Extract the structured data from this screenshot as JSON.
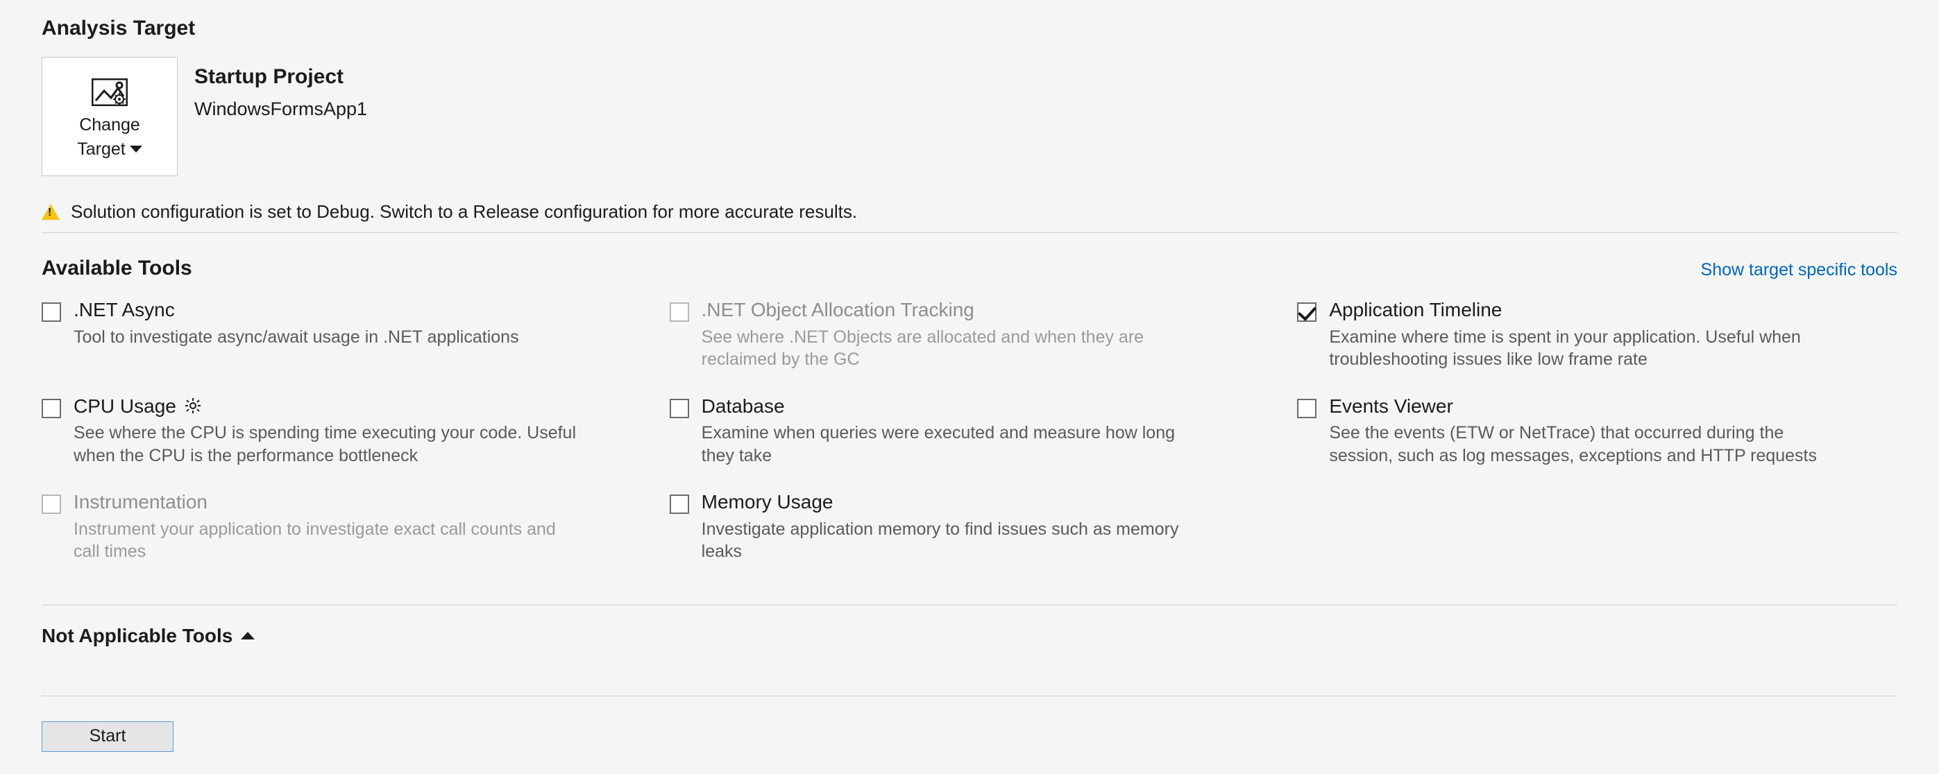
{
  "section_analysis_target": "Analysis Target",
  "change_target": {
    "line1": "Change",
    "line2": "Target"
  },
  "startup_project": {
    "label": "Startup Project",
    "name": "WindowsFormsApp1"
  },
  "warning_text": "Solution configuration is set to Debug. Switch to a Release configuration for more accurate results.",
  "section_available_tools": "Available Tools",
  "show_target_specific_link": "Show target specific tools",
  "tools": [
    {
      "title": ".NET Async",
      "desc": "Tool to investigate async/await usage in .NET applications",
      "checked": false,
      "disabled": false,
      "gear": false
    },
    {
      "title": ".NET Object Allocation Tracking",
      "desc": "See where .NET Objects are allocated and when they are reclaimed by the GC",
      "checked": false,
      "disabled": true,
      "gear": false
    },
    {
      "title": "Application Timeline",
      "desc": "Examine where time is spent in your application. Useful when troubleshooting issues like low frame rate",
      "checked": true,
      "disabled": false,
      "gear": false
    },
    {
      "title": "CPU Usage",
      "desc": "See where the CPU is spending time executing your code. Useful when the CPU is the performance bottleneck",
      "checked": false,
      "disabled": false,
      "gear": true
    },
    {
      "title": "Database",
      "desc": "Examine when queries were executed and measure how long they take",
      "checked": false,
      "disabled": false,
      "gear": false
    },
    {
      "title": "Events Viewer",
      "desc": "See the events (ETW or NetTrace) that occurred during the session, such as log messages, exceptions and HTTP requests",
      "checked": false,
      "disabled": false,
      "gear": false
    },
    {
      "title": "Instrumentation",
      "desc": "Instrument your application to investigate exact call counts and call times",
      "checked": false,
      "disabled": true,
      "gear": false
    },
    {
      "title": "Memory Usage",
      "desc": "Investigate application memory to find issues such as memory leaks",
      "checked": false,
      "disabled": false,
      "gear": false
    }
  ],
  "section_not_applicable": "Not Applicable Tools",
  "start_button": "Start"
}
